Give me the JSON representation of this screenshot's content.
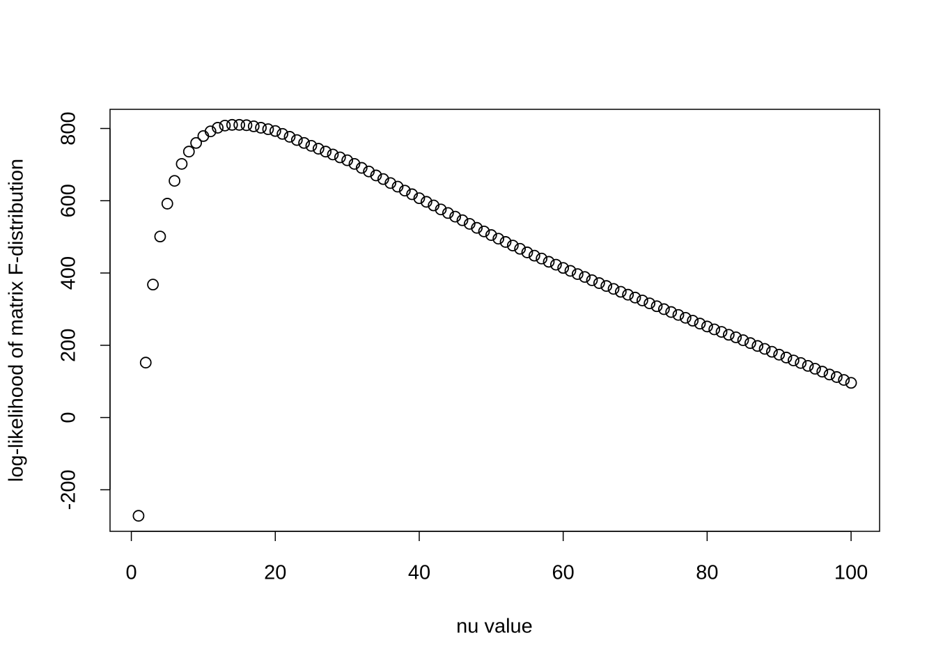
{
  "chart_data": {
    "type": "scatter",
    "xlabel": "nu value",
    "ylabel": "log-likelihood of matrix F-distribution",
    "x": [
      1,
      2,
      3,
      4,
      5,
      6,
      7,
      8,
      9,
      10,
      11,
      12,
      13,
      14,
      15,
      16,
      17,
      18,
      19,
      20,
      21,
      22,
      23,
      24,
      25,
      26,
      27,
      28,
      29,
      30,
      31,
      32,
      33,
      34,
      35,
      36,
      37,
      38,
      39,
      40,
      41,
      42,
      43,
      44,
      45,
      46,
      47,
      48,
      49,
      50,
      51,
      52,
      53,
      54,
      55,
      56,
      57,
      58,
      59,
      60,
      61,
      62,
      63,
      64,
      65,
      66,
      67,
      68,
      69,
      70,
      71,
      72,
      73,
      74,
      75,
      76,
      77,
      78,
      79,
      80,
      81,
      82,
      83,
      84,
      85,
      86,
      87,
      88,
      89,
      90,
      91,
      92,
      93,
      94,
      95,
      96,
      97,
      98,
      99,
      100
    ],
    "values": [
      -272,
      152,
      368,
      501,
      592,
      655,
      702,
      736,
      760,
      779,
      792,
      802,
      808,
      810,
      810,
      809,
      806,
      802,
      798,
      793,
      785,
      777,
      768,
      760,
      752,
      744,
      736,
      728,
      720,
      712,
      702,
      691,
      681,
      670,
      660,
      649,
      639,
      628,
      618,
      607,
      597,
      587,
      576,
      566,
      556,
      546,
      536,
      525,
      515,
      505,
      495,
      486,
      476,
      467,
      457,
      448,
      440,
      431,
      423,
      414,
      406,
      397,
      389,
      380,
      372,
      364,
      356,
      348,
      340,
      332,
      324,
      316,
      308,
      300,
      292,
      284,
      276,
      268,
      260,
      252,
      244,
      237,
      229,
      222,
      214,
      206,
      198,
      190,
      182,
      174,
      166,
      158,
      151,
      143,
      135,
      127,
      119,
      112,
      104,
      96
    ],
    "color": "#000000",
    "xlim": [
      -2.96,
      103.96
    ],
    "ylim": [
      -315,
      853
    ],
    "xticks": [
      0,
      20,
      40,
      60,
      80,
      100
    ],
    "yticks": [
      -200,
      0,
      200,
      400,
      600,
      800
    ]
  }
}
